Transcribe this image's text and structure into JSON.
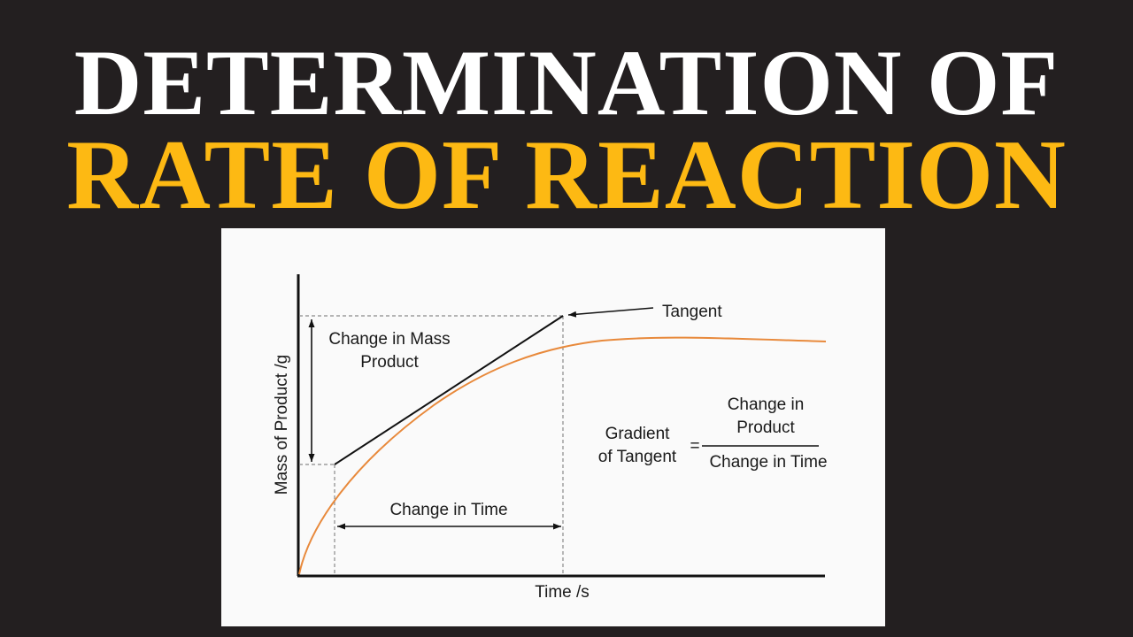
{
  "heading": {
    "line1": "DETERMINATION OF",
    "line2": "RATE OF REACTION",
    "line1_color": "#ffffff",
    "line2_color": "#fdb913"
  },
  "diagram": {
    "y_axis_label": "Mass of Product /g",
    "x_axis_label": "Time /s",
    "tangent_label": "Tangent",
    "mass_change_label_line1": "Change in Mass",
    "mass_change_label_line2": "Product",
    "time_change_label": "Change in Time",
    "gradient_lhs_line1": "Gradient",
    "gradient_lhs_line2": "of Tangent",
    "equals_sign": "=",
    "numerator_line1": "Change in",
    "numerator_line2": "Product",
    "denominator": "Change in Time",
    "curve_color": "#e8893b",
    "line_color": "#111111",
    "guide_color": "#8a8a8a"
  }
}
